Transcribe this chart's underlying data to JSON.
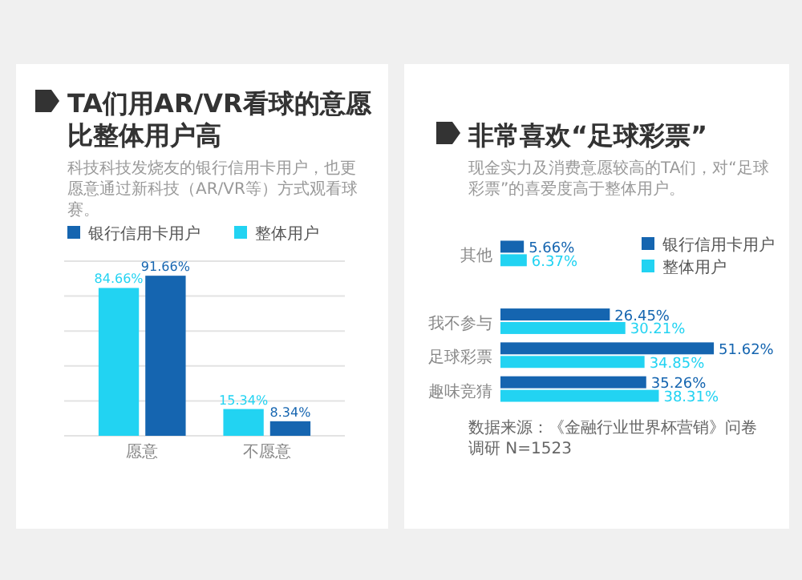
{
  "chart_data": [
    {
      "type": "bar",
      "title": "TA们用AR/VR看球的意愿比整体用户高",
      "subtitle": "科技科技发烧友的银行信用卡用户，也更愿意通过新科技（AR/VR等）方式观看球赛。",
      "categories": [
        "愿意",
        "不愿意"
      ],
      "series": [
        {
          "name": "整体用户",
          "color": "#22d3f2",
          "values": [
            84.66,
            15.34
          ],
          "value_labels": [
            "84.66%",
            "15.34%"
          ]
        },
        {
          "name": "银行信用卡用户",
          "color": "#1565b0",
          "values": [
            91.66,
            8.34
          ],
          "value_labels": [
            "91.66%",
            "8.34%"
          ]
        }
      ],
      "ylim": [
        0,
        100
      ],
      "yticks": [
        {
          "value": 0,
          "label": null
        },
        {
          "value": 20,
          "label": null
        },
        {
          "value": 40,
          "label": null
        },
        {
          "value": 60,
          "label": null
        },
        {
          "value": 80,
          "label": null
        },
        {
          "value": 100,
          "label": null
        }
      ],
      "grid": "y",
      "tick_labels": "x",
      "legend": "top left"
    },
    {
      "type": "bar",
      "orientation": "horizontal",
      "title": "非常喜欢“足球彩票”",
      "subtitle": "现金实力及消费意愿较高的TA们，对“足球彩票”的喜爱度高于整体用户。",
      "categories": [
        "其他",
        null,
        "我不参与",
        "足球彩票",
        "趣味竞猜"
      ],
      "series": [
        {
          "name": "银行信用卡用户",
          "color": "#1565b0",
          "values": [
            5.66,
            null,
            26.45,
            51.62,
            35.26
          ],
          "value_labels": [
            "5.66%",
            null,
            "26.45%",
            "51.62%",
            "35.26%"
          ]
        },
        {
          "name": "整体用户",
          "color": "#22d3f2",
          "values": [
            6.37,
            null,
            30.21,
            34.85,
            38.31
          ],
          "value_labels": [
            "6.37%",
            null,
            "30.21%",
            "34.85%",
            "38.31%"
          ]
        }
      ],
      "tick_labels": "y",
      "legend": "top right",
      "annotations": [
        "数据来源：《金融行业世界杯营销》问卷调研 N=1523"
      ]
    }
  ]
}
